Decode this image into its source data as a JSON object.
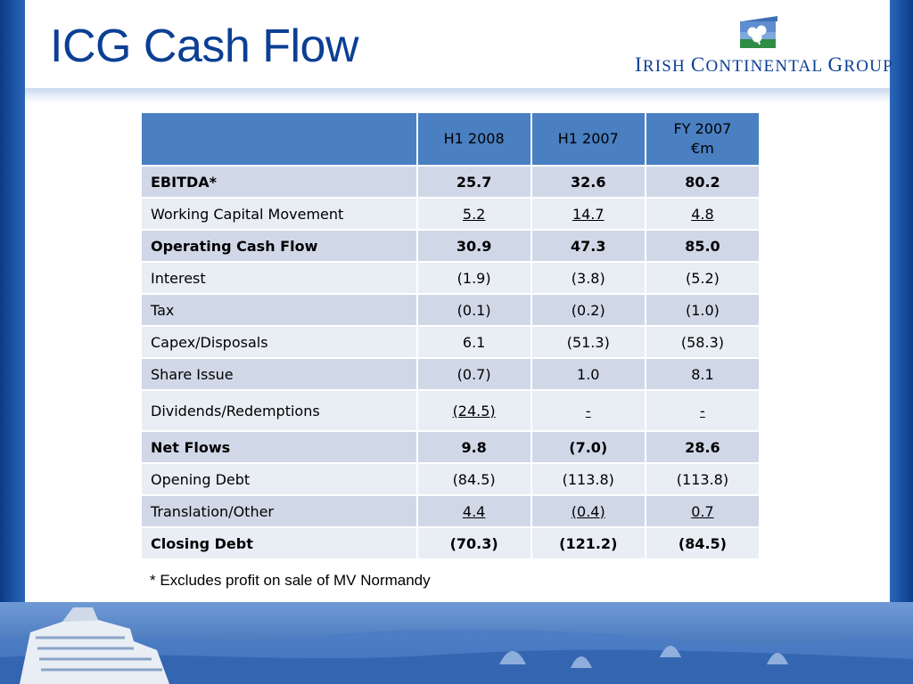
{
  "slide": {
    "title": "ICG Cash Flow",
    "footnote": "* Excludes profit on sale of MV Normandy"
  },
  "logo": {
    "company_name": "Irish Continental Group"
  },
  "table": {
    "columns": [
      "",
      "H1 2008",
      "H1 2007",
      "FY 2007\n€m"
    ],
    "rows": [
      {
        "label": "EBITDA*",
        "values": [
          "25.7",
          "32.6",
          "80.2"
        ]
      },
      {
        "label": "Working Capital Movement",
        "values": [
          "5.2",
          "14.7",
          "4.8"
        ]
      },
      {
        "label": "Operating Cash Flow",
        "values": [
          "30.9",
          "47.3",
          "85.0"
        ]
      },
      {
        "label": "Interest",
        "values": [
          "(1.9)",
          "(3.8)",
          "(5.2)"
        ]
      },
      {
        "label": "Tax",
        "values": [
          "(0.1)",
          "(0.2)",
          "(1.0)"
        ]
      },
      {
        "label": "Capex/Disposals",
        "values": [
          "6.1",
          "(51.3)",
          "(58.3)"
        ]
      },
      {
        "label": "Share Issue",
        "values": [
          "(0.7)",
          "1.0",
          "8.1"
        ]
      },
      {
        "label": "Dividends/Redemptions",
        "values": [
          "(24.5)",
          "-",
          "-"
        ]
      },
      {
        "label": "Net Flows",
        "values": [
          "9.8",
          "(7.0)",
          "28.6"
        ]
      },
      {
        "label": "Opening Debt",
        "values": [
          "(84.5)",
          "(113.8)",
          "(113.8)"
        ]
      },
      {
        "label": "Translation/Other",
        "values": [
          "4.4",
          "(0.4)",
          "0.7"
        ]
      },
      {
        "label": "Closing Debt",
        "values": [
          "(70.3)",
          "(121.2)",
          "(84.5)"
        ]
      }
    ]
  },
  "colors": {
    "title": "#0b3f94",
    "header_fill": "#4a7fc1",
    "row_dark": "#d0d8e8",
    "row_light": "#e9edf4",
    "frame_blue": "#1e56a8"
  },
  "images": {
    "bottom_band": "ferry-harbour-photo"
  }
}
